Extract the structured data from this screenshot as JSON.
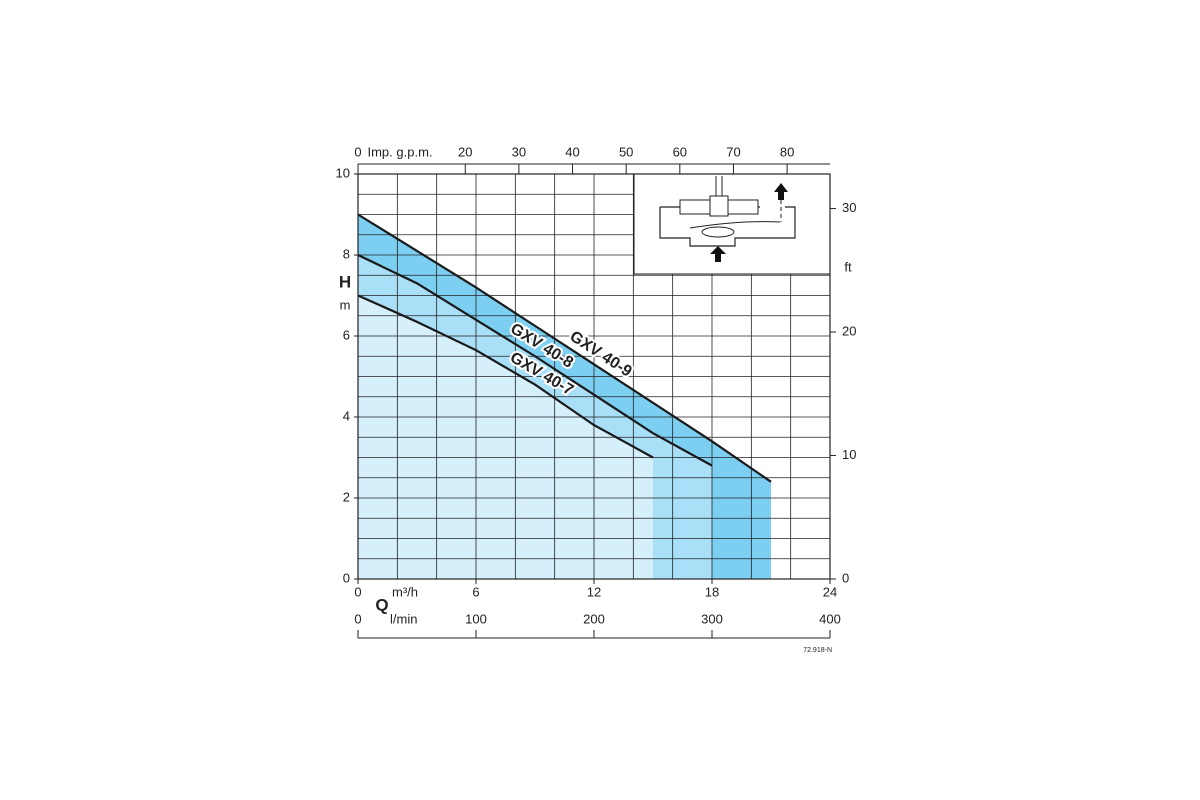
{
  "chart_data": {
    "type": "area",
    "x": [
      0,
      3,
      6,
      9,
      12,
      15,
      18,
      21
    ],
    "series": [
      {
        "name": "GXV 40-9",
        "color": "#7dcff2",
        "values": [
          9.0,
          8.1,
          7.2,
          6.25,
          5.3,
          4.35,
          3.4,
          2.4
        ]
      },
      {
        "name": "GXV 40-8",
        "color": "#a9dff7",
        "values": [
          8.0,
          7.3,
          6.4,
          5.5,
          4.55,
          3.6,
          2.8,
          null
        ]
      },
      {
        "name": "GXV 40-7",
        "color": "#d5effb",
        "values": [
          7.0,
          6.35,
          5.65,
          4.8,
          3.8,
          3.0,
          null,
          null
        ]
      }
    ],
    "line_color": "#1a1a1a",
    "xlabel": "m³/h",
    "xlim": [
      0,
      24
    ],
    "xticks": [
      0,
      6,
      12,
      18,
      24
    ],
    "xgrid": [
      0,
      2,
      4,
      6,
      8,
      10,
      12,
      14,
      16,
      18,
      20,
      22,
      24
    ],
    "ylabel": "H",
    "yunit": "m",
    "ylim": [
      0,
      10
    ],
    "yticks": [
      0,
      2,
      4,
      6,
      8,
      10
    ],
    "ygrid": [
      0,
      0.5,
      1,
      1.5,
      2,
      2.5,
      3,
      3.5,
      4,
      4.5,
      5,
      5.5,
      6,
      6.5,
      7,
      7.5,
      8,
      8.5,
      9,
      9.5,
      10
    ],
    "x2label": "Imp. g.p.m.",
    "x2lim": [
      0,
      88
    ],
    "x2ticks": [
      0,
      20,
      30,
      40,
      50,
      60,
      70,
      80
    ],
    "x3label": "l/min",
    "x3lim": [
      0,
      400
    ],
    "x3ticks": [
      0,
      100,
      200,
      300,
      400
    ],
    "flow_symbol": "Q",
    "y2label": "ft",
    "y2lim": [
      0,
      32.8
    ],
    "y2ticks": [
      0,
      10,
      20,
      30
    ],
    "code": "72.918-N",
    "grid": true
  }
}
